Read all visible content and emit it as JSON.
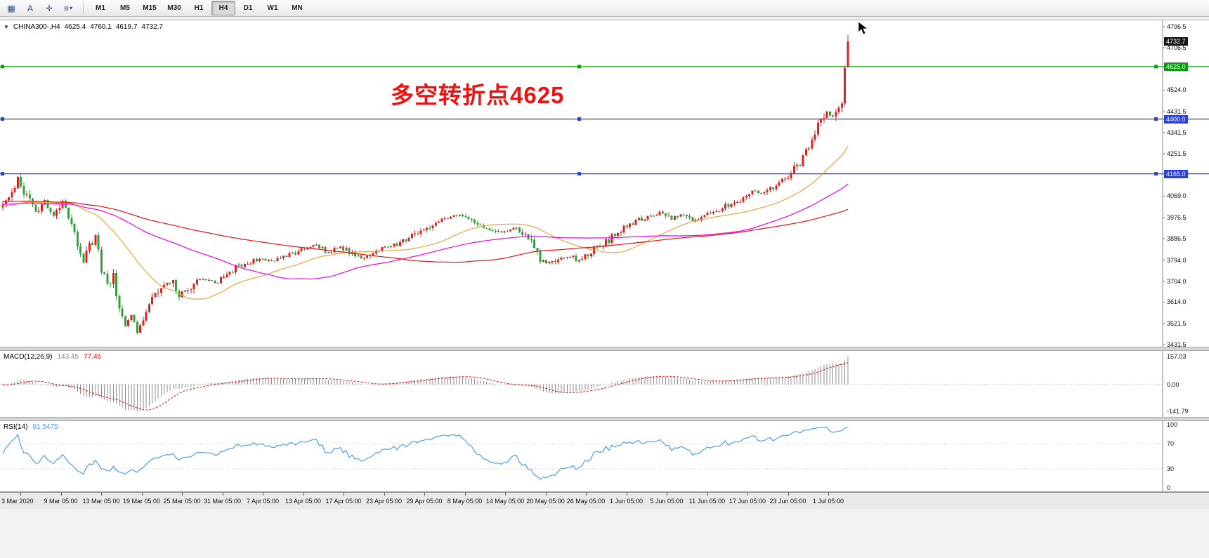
{
  "toolbar": {
    "tools": [
      {
        "name": "chart-window-icon",
        "glyph": "▦"
      },
      {
        "name": "cursor-tool-icon",
        "glyph": "A"
      },
      {
        "name": "crosshair-tool-icon",
        "glyph": "✛"
      },
      {
        "name": "line-tools-icon",
        "glyph": "≡",
        "caret": "▾"
      }
    ],
    "timeframes": [
      "M1",
      "M5",
      "M15",
      "M30",
      "H1",
      "H4",
      "D1",
      "W1",
      "MN"
    ],
    "active_timeframe": "H4"
  },
  "chart": {
    "header": {
      "collapse_glyph": "▼",
      "symbol": "CHINA300-,H4",
      "open": "4625.4",
      "high": "4760.1",
      "low": "4619.7",
      "close": "4732.7"
    },
    "annotation": {
      "text": "多空转折点4625",
      "color": "#f01111"
    },
    "horizontal_lines": [
      {
        "price": 4625.0,
        "label": "4625.0",
        "color": "#0a9d0a"
      },
      {
        "price": 4400.0,
        "label": "4400.0",
        "color": "#2b3fe0"
      },
      {
        "price": 4165.0,
        "label": "4165.0",
        "color": "#2b3fe0"
      }
    ],
    "current_price_badge": {
      "label": "4732.7",
      "price": 4732.7,
      "bg": "#161616",
      "fg": "#ffffff"
    },
    "y_axis_ticks": [
      "4796.5",
      "4706.5",
      "4524.0",
      "4431.5",
      "4341.5",
      "4251.5",
      "4069.0",
      "3976.5",
      "3886.5",
      "3794.0",
      "3704.0",
      "3614.0",
      "3521.5",
      "3431.5"
    ],
    "colors": {
      "up": "#e02020",
      "down": "#2fa33a",
      "ma_fast": "#e8a33d",
      "ma_medium": "#f000f0",
      "ma_slow": "#ee1111",
      "background": "#ffffff"
    }
  },
  "macd": {
    "label": "MACD(12,26,9)",
    "value_main": "143.45",
    "value_signal": "77.46",
    "axis_ticks": [
      "157.03",
      "0.00",
      "-141.79"
    ],
    "colors": {
      "histogram": "#8c8c8c",
      "signal": "#e01010"
    }
  },
  "rsi": {
    "label": "RSI(14)",
    "value": "91.5475",
    "axis_ticks": [
      "100",
      "70",
      "30",
      "0"
    ],
    "levels": [
      70,
      30
    ],
    "color": "#4f9ce8"
  },
  "time_axis": [
    "3 Mar 2020",
    "9 Mar 05:00",
    "13 Mar 05:00",
    "19 Mar 05:00",
    "25 Mar 05:00",
    "31 Mar 05:00",
    "7 Apr 05:00",
    "13 Apr 05:00",
    "17 Apr 05:00",
    "23 Apr 05:00",
    "29 Apr 05:00",
    "8 May 05:00",
    "14 May 05:00",
    "20 May 05:00",
    "26 May 05:00",
    "1 Jun 05:00",
    "5 Jun 05:00",
    "11 Jun 05:00",
    "17 Jun 05:00",
    "23 Jun 05:00",
    "1 Jul 05:00"
  ],
  "chart_data": {
    "type": "candlestick",
    "symbol": "CHINA300-",
    "timeframe": "H4",
    "title_annotation": "多空转折点4625",
    "y_range": [
      3431.5,
      4796.5
    ],
    "bar_count": 284,
    "last_bar": {
      "open": 4625.4,
      "high": 4760.1,
      "low": 4619.7,
      "close": 4732.7
    },
    "horizontal_levels": [
      4625.0,
      4400.0,
      4165.0
    ],
    "price_path": [
      [
        0,
        4020
      ],
      [
        2,
        4058
      ],
      [
        5,
        4150
      ],
      [
        8,
        4062
      ],
      [
        11,
        4002
      ],
      [
        14,
        4058
      ],
      [
        17,
        3985
      ],
      [
        20,
        4048
      ],
      [
        23,
        3952
      ],
      [
        25,
        3856
      ],
      [
        27,
        3786
      ],
      [
        29,
        3864
      ],
      [
        31,
        3890
      ],
      [
        33,
        3756
      ],
      [
        35,
        3686
      ],
      [
        37,
        3726
      ],
      [
        39,
        3582
      ],
      [
        41,
        3506
      ],
      [
        43,
        3560
      ],
      [
        45,
        3487
      ],
      [
        47,
        3550
      ],
      [
        50,
        3620
      ],
      [
        52,
        3660
      ],
      [
        54,
        3690
      ],
      [
        57,
        3702
      ],
      [
        59,
        3646
      ],
      [
        62,
        3666
      ],
      [
        65,
        3700
      ],
      [
        68,
        3712
      ],
      [
        71,
        3696
      ],
      [
        74,
        3722
      ],
      [
        78,
        3760
      ],
      [
        82,
        3782
      ],
      [
        86,
        3800
      ],
      [
        90,
        3792
      ],
      [
        95,
        3812
      ],
      [
        100,
        3838
      ],
      [
        105,
        3858
      ],
      [
        109,
        3830
      ],
      [
        113,
        3850
      ],
      [
        117,
        3822
      ],
      [
        120,
        3802
      ],
      [
        122,
        3812
      ],
      [
        126,
        3840
      ],
      [
        130,
        3852
      ],
      [
        133,
        3868
      ],
      [
        136,
        3890
      ],
      [
        140,
        3918
      ],
      [
        144,
        3950
      ],
      [
        148,
        3968
      ],
      [
        151,
        3980
      ],
      [
        154,
        3988
      ],
      [
        157,
        3962
      ],
      [
        160,
        3942
      ],
      [
        163,
        3930
      ],
      [
        167,
        3912
      ],
      [
        171,
        3930
      ],
      [
        174,
        3902
      ],
      [
        177,
        3872
      ],
      [
        180,
        3795
      ],
      [
        183,
        3782
      ],
      [
        186,
        3802
      ],
      [
        190,
        3812
      ],
      [
        193,
        3792
      ],
      [
        196,
        3822
      ],
      [
        199,
        3850
      ],
      [
        202,
        3872
      ],
      [
        205,
        3902
      ],
      [
        208,
        3938
      ],
      [
        212,
        3958
      ],
      [
        215,
        3978
      ],
      [
        218,
        3990
      ],
      [
        221,
        4000
      ],
      [
        224,
        3972
      ],
      [
        227,
        3990
      ],
      [
        231,
        3962
      ],
      [
        234,
        3982
      ],
      [
        238,
        4002
      ],
      [
        241,
        4020
      ],
      [
        245,
        4042
      ],
      [
        248,
        4062
      ],
      [
        251,
        4090
      ],
      [
        254,
        4082
      ],
      [
        258,
        4112
      ],
      [
        262,
        4150
      ],
      [
        265,
        4182
      ],
      [
        268,
        4232
      ],
      [
        270,
        4292
      ],
      [
        272,
        4342
      ],
      [
        274,
        4402
      ],
      [
        276,
        4432
      ],
      [
        278,
        4412
      ],
      [
        280,
        4438
      ],
      [
        281,
        4452
      ],
      [
        282,
        4628
      ],
      [
        283,
        4732.7
      ]
    ],
    "indicators": {
      "macd": {
        "params": [
          12,
          26,
          9
        ],
        "main": 143.45,
        "signal": 77.46,
        "max": 157.03,
        "min": -141.79
      },
      "rsi": {
        "period": 14,
        "value": 91.5475,
        "levels": [
          70,
          30
        ]
      }
    }
  }
}
